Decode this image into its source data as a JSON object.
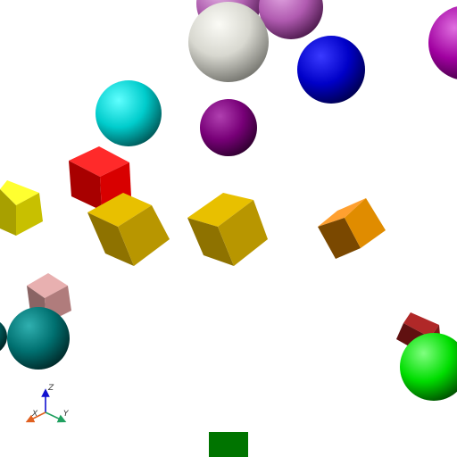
{
  "scene": {
    "background": "#ffffff",
    "objects": [
      {
        "name": "light-purple-sphere-top",
        "shape": "sphere",
        "color": "#b060b0"
      },
      {
        "name": "orchid-sphere-top",
        "shape": "sphere",
        "color": "#b05ab0"
      },
      {
        "name": "white-sphere",
        "shape": "sphere",
        "color": "#e6e6e0"
      },
      {
        "name": "magenta-sphere-right",
        "shape": "sphere",
        "color": "#a000a0"
      },
      {
        "name": "blue-sphere",
        "shape": "sphere",
        "color": "#0000d0"
      },
      {
        "name": "cyan-sphere",
        "shape": "sphere",
        "color": "#00d8d8"
      },
      {
        "name": "dark-purple-sphere",
        "shape": "sphere",
        "color": "#800080"
      },
      {
        "name": "red-cube",
        "shape": "cube",
        "color": "#e00000"
      },
      {
        "name": "yellow-cube-left",
        "shape": "cube",
        "color": "#e0d800"
      },
      {
        "name": "gold-cube-center-left",
        "shape": "cube",
        "color": "#d8b000"
      },
      {
        "name": "gold-cube-center",
        "shape": "cube",
        "color": "#d8b000"
      },
      {
        "name": "orange-cube",
        "shape": "cube",
        "color": "#e08800"
      },
      {
        "name": "pink-cube",
        "shape": "cube",
        "color": "#e0a8a8"
      },
      {
        "name": "teal-sphere",
        "shape": "sphere",
        "color": "#008080"
      },
      {
        "name": "teal-sphere-edge",
        "shape": "sphere",
        "color": "#006a6a"
      },
      {
        "name": "dark-red-cube",
        "shape": "cube",
        "color": "#901818"
      },
      {
        "name": "green-sphere",
        "shape": "sphere",
        "color": "#00e000"
      },
      {
        "name": "green-cube-bottom",
        "shape": "cube",
        "color": "#007000"
      }
    ]
  },
  "axes_widget": {
    "z_label": "Z",
    "x_label": "X",
    "y_label": "Y",
    "z_color": "#1010d0",
    "x_color": "#e06020",
    "y_color": "#20a060"
  }
}
